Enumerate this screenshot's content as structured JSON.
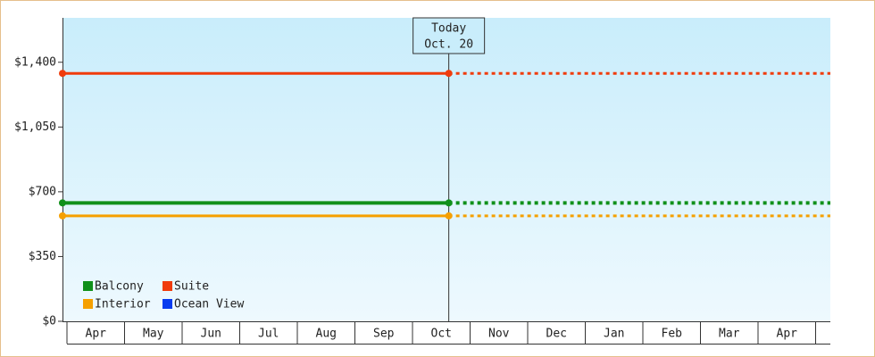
{
  "chart_data": {
    "type": "line",
    "today_label": [
      "Today",
      "Oct. 20"
    ],
    "categories": [
      "Apr",
      "May",
      "Jun",
      "Jul",
      "Aug",
      "Sep",
      "Oct",
      "Nov",
      "Dec",
      "Jan",
      "Feb",
      "Mar",
      "Apr"
    ],
    "today_index": 6,
    "series": [
      {
        "name": "Balcony",
        "color": "#10901a",
        "value": 640
      },
      {
        "name": "Interior",
        "color": "#f5a000",
        "value": 570
      },
      {
        "name": "Suite",
        "color": "#f03c0c",
        "value": 1340
      },
      {
        "name": "Ocean View",
        "color": "#0a3cf0",
        "value": null
      }
    ],
    "ylim": [
      0,
      1640
    ],
    "yticks": [
      {
        "value": 0,
        "label": "$0"
      },
      {
        "value": 350,
        "label": "$350"
      },
      {
        "value": 700,
        "label": "$700"
      },
      {
        "value": 1050,
        "label": "$1,050"
      },
      {
        "value": 1400,
        "label": "$1,400"
      }
    ]
  }
}
